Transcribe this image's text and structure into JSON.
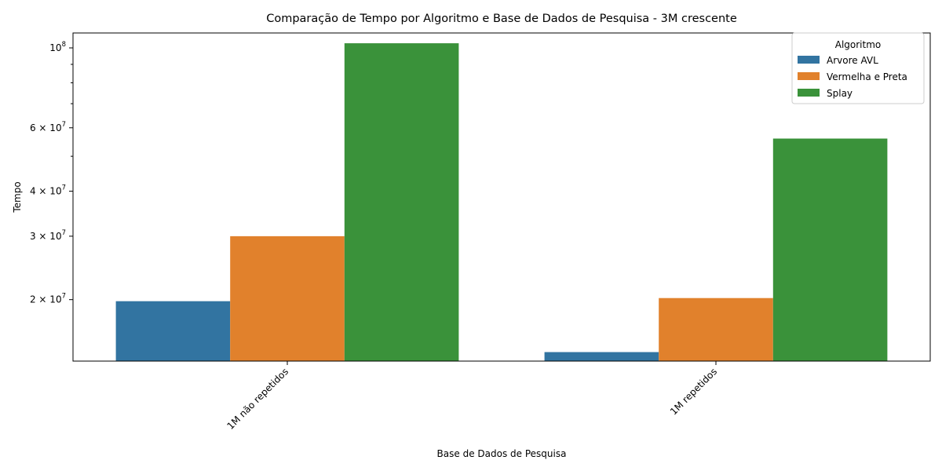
{
  "chart_data": {
    "type": "bar",
    "title": "Comparação de Tempo por Algoritmo e Base de Dados de Pesquisa - 3M crescente",
    "xlabel": "Base de Dados de Pesquisa",
    "ylabel": "Tempo",
    "yscale": "log",
    "ylim": [
      13500000,
      110000000
    ],
    "yticks": [
      {
        "value": 20000000,
        "mantissa": "2",
        "exponent": "7"
      },
      {
        "value": 30000000,
        "mantissa": "3",
        "exponent": "7"
      },
      {
        "value": 40000000,
        "mantissa": "4",
        "exponent": "7"
      },
      {
        "value": 60000000,
        "mantissa": "6",
        "exponent": "7"
      },
      {
        "value": 100000000,
        "mantissa": "",
        "exponent": "8"
      }
    ],
    "yminor_ticks": [
      50000000,
      70000000,
      80000000,
      90000000
    ],
    "categories": [
      "1M não repetidos",
      "1M repetidos"
    ],
    "series": [
      {
        "name": "Arvore AVL",
        "color": "#3274a1",
        "values": [
          19800000,
          14300000
        ]
      },
      {
        "name": "Vermelha e Preta",
        "color": "#e1812c",
        "values": [
          30000000,
          20200000
        ]
      },
      {
        "name": "Splay",
        "color": "#3a923a",
        "values": [
          103000000,
          56000000
        ]
      }
    ],
    "legend": {
      "title": "Algoritmo",
      "position": "top-right"
    }
  }
}
